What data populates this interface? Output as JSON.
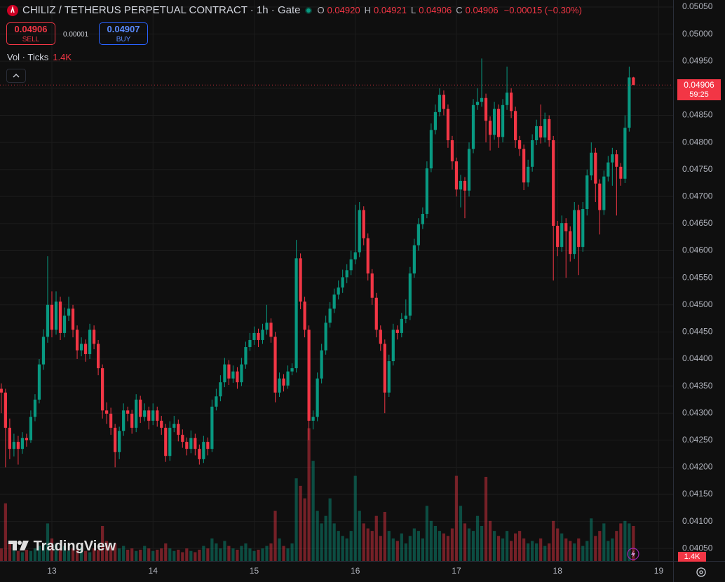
{
  "chart_data": {
    "type": "candlestick",
    "title": "CHILIZ / TETHERUS PERPETUAL CONTRACT · 1h · Gate",
    "ohlc": [
      {
        "key": "O",
        "value": "0.04920"
      },
      {
        "key": "H",
        "value": "0.04921"
      },
      {
        "key": "L",
        "value": "0.04906"
      },
      {
        "key": "C",
        "value": "0.04906"
      }
    ],
    "change": "−0.00015 (−0.30%)",
    "sell": {
      "price": "0.04906",
      "label": "SELL"
    },
    "spread": "0.00001",
    "buy": {
      "price": "0.04907",
      "label": "BUY"
    },
    "last_price_label": "0.04906",
    "countdown": "59:25",
    "watermark": "TradingView",
    "up_color": "#089981",
    "down_color": "#f23645",
    "grid": true,
    "xlim": [
      -0.31,
      159.42
    ],
    "xticks": [
      {
        "value": 12,
        "label": "13"
      },
      {
        "value": 36,
        "label": "14"
      },
      {
        "value": 60,
        "label": "15"
      },
      {
        "value": 84,
        "label": "16"
      },
      {
        "value": 108,
        "label": "17"
      },
      {
        "value": 132,
        "label": "18"
      },
      {
        "value": 156,
        "label": "19"
      }
    ],
    "ylim": [
      0.04027,
      0.05063
    ],
    "yticks": [
      {
        "value": 0.0405,
        "label": "0.04050"
      },
      {
        "value": 0.041,
        "label": "0.04100"
      },
      {
        "value": 0.0415,
        "label": "0.04150"
      },
      {
        "value": 0.042,
        "label": "0.04200"
      },
      {
        "value": 0.0425,
        "label": "0.04250"
      },
      {
        "value": 0.043,
        "label": "0.04300"
      },
      {
        "value": 0.0435,
        "label": "0.04350"
      },
      {
        "value": 0.044,
        "label": "0.04400"
      },
      {
        "value": 0.0445,
        "label": "0.04450"
      },
      {
        "value": 0.045,
        "label": "0.04500"
      },
      {
        "value": 0.0455,
        "label": "0.04550"
      },
      {
        "value": 0.046,
        "label": "0.04600"
      },
      {
        "value": 0.0465,
        "label": "0.04650"
      },
      {
        "value": 0.047,
        "label": "0.04700"
      },
      {
        "value": 0.0475,
        "label": "0.04750"
      },
      {
        "value": 0.048,
        "label": "0.04800"
      },
      {
        "value": 0.0485,
        "label": "0.04850"
      },
      {
        "value": 0.049,
        "label": "0.04900"
      },
      {
        "value": 0.0495,
        "label": "0.04950"
      },
      {
        "value": 0.05,
        "label": "0.05000"
      },
      {
        "value": 0.0505,
        "label": "0.05050"
      }
    ],
    "candles": [
      [
        0.04345,
        0.04355,
        0.043,
        0.04338
      ],
      [
        0.04338,
        0.04345,
        0.042,
        0.04273
      ],
      [
        0.04273,
        0.0429,
        0.04215,
        0.04234
      ],
      [
        0.04234,
        0.04262,
        0.0422,
        0.04247
      ],
      [
        0.04247,
        0.04258,
        0.04205,
        0.04234
      ],
      [
        0.04234,
        0.04265,
        0.04225,
        0.04254
      ],
      [
        0.04254,
        0.04262,
        0.04238,
        0.0425
      ],
      [
        0.0425,
        0.04305,
        0.04245,
        0.04293
      ],
      [
        0.04293,
        0.04335,
        0.04285,
        0.04325
      ],
      [
        0.04325,
        0.044,
        0.04318,
        0.0439
      ],
      [
        0.0439,
        0.04455,
        0.0438,
        0.04441
      ],
      [
        0.04441,
        0.0459,
        0.0443,
        0.045
      ],
      [
        0.045,
        0.04525,
        0.0444,
        0.04454
      ],
      [
        0.04454,
        0.04525,
        0.04445,
        0.04506
      ],
      [
        0.04506,
        0.04515,
        0.04435,
        0.04448
      ],
      [
        0.04448,
        0.04495,
        0.0444,
        0.0448
      ],
      [
        0.0448,
        0.04515,
        0.0447,
        0.04493
      ],
      [
        0.04493,
        0.045,
        0.0444,
        0.04454
      ],
      [
        0.04454,
        0.04462,
        0.044,
        0.04416
      ],
      [
        0.04416,
        0.0444,
        0.04405,
        0.04428
      ],
      [
        0.04428,
        0.04436,
        0.04395,
        0.04409
      ],
      [
        0.04409,
        0.04465,
        0.044,
        0.04454
      ],
      [
        0.04454,
        0.04462,
        0.04418,
        0.04428
      ],
      [
        0.04428,
        0.04435,
        0.0437,
        0.04383
      ],
      [
        0.04383,
        0.0439,
        0.0429,
        0.04305
      ],
      [
        0.04305,
        0.0432,
        0.0428,
        0.04299
      ],
      [
        0.04299,
        0.0431,
        0.0426,
        0.04273
      ],
      [
        0.04273,
        0.0428,
        0.042,
        0.04228
      ],
      [
        0.04228,
        0.04275,
        0.04215,
        0.04267
      ],
      [
        0.04267,
        0.04318,
        0.04258,
        0.04305
      ],
      [
        0.04305,
        0.04312,
        0.04285,
        0.04299
      ],
      [
        0.04299,
        0.04306,
        0.04262,
        0.04273
      ],
      [
        0.04273,
        0.04335,
        0.04265,
        0.04325
      ],
      [
        0.04325,
        0.04332,
        0.04282,
        0.04293
      ],
      [
        0.04293,
        0.04318,
        0.04285,
        0.04305
      ],
      [
        0.04305,
        0.04312,
        0.0427,
        0.04286
      ],
      [
        0.04286,
        0.04318,
        0.04278,
        0.04305
      ],
      [
        0.04305,
        0.04312,
        0.04275,
        0.04286
      ],
      [
        0.04286,
        0.04295,
        0.0426,
        0.04273
      ],
      [
        0.04273,
        0.0428,
        0.0421,
        0.04221
      ],
      [
        0.04221,
        0.04285,
        0.04212,
        0.04273
      ],
      [
        0.04273,
        0.04295,
        0.04265,
        0.0428
      ],
      [
        0.0428,
        0.04288,
        0.04248,
        0.0426
      ],
      [
        0.0426,
        0.0427,
        0.04236,
        0.04247
      ],
      [
        0.04247,
        0.04255,
        0.04222,
        0.04234
      ],
      [
        0.04234,
        0.04268,
        0.04226,
        0.04254
      ],
      [
        0.04254,
        0.04262,
        0.04222,
        0.04234
      ],
      [
        0.04234,
        0.04242,
        0.04205,
        0.04215
      ],
      [
        0.04215,
        0.04258,
        0.04208,
        0.04247
      ],
      [
        0.04247,
        0.04255,
        0.04222,
        0.04234
      ],
      [
        0.04234,
        0.04325,
        0.04228,
        0.04312
      ],
      [
        0.04312,
        0.04345,
        0.04305,
        0.04331
      ],
      [
        0.04331,
        0.0437,
        0.04322,
        0.04357
      ],
      [
        0.04357,
        0.04402,
        0.04348,
        0.0439
      ],
      [
        0.0439,
        0.04398,
        0.04352,
        0.04364
      ],
      [
        0.04364,
        0.04388,
        0.04356,
        0.04377
      ],
      [
        0.04377,
        0.04385,
        0.04345,
        0.04357
      ],
      [
        0.04357,
        0.04402,
        0.0435,
        0.0439
      ],
      [
        0.0439,
        0.04432,
        0.04382,
        0.04422
      ],
      [
        0.04422,
        0.04448,
        0.04415,
        0.04435
      ],
      [
        0.04435,
        0.0446,
        0.04426,
        0.04448
      ],
      [
        0.04448,
        0.04456,
        0.04422,
        0.04435
      ],
      [
        0.04435,
        0.04465,
        0.04428,
        0.04454
      ],
      [
        0.04454,
        0.045,
        0.04445,
        0.04467
      ],
      [
        0.04467,
        0.04475,
        0.0443,
        0.04441
      ],
      [
        0.04441,
        0.0445,
        0.0432,
        0.04338
      ],
      [
        0.04338,
        0.04375,
        0.0433,
        0.04364
      ],
      [
        0.04364,
        0.04372,
        0.0434,
        0.04351
      ],
      [
        0.04351,
        0.04388,
        0.04345,
        0.04377
      ],
      [
        0.04377,
        0.04392,
        0.0437,
        0.04383
      ],
      [
        0.04383,
        0.0462,
        0.04375,
        0.04586
      ],
      [
        0.04586,
        0.04595,
        0.04492,
        0.04506
      ],
      [
        0.04506,
        0.04515,
        0.0444,
        0.04454
      ],
      [
        0.04454,
        0.04462,
        0.0425,
        0.04286
      ],
      [
        0.04286,
        0.04305,
        0.0427,
        0.04293
      ],
      [
        0.04293,
        0.04375,
        0.04285,
        0.04364
      ],
      [
        0.04364,
        0.04428,
        0.04355,
        0.04416
      ],
      [
        0.04416,
        0.0448,
        0.04408,
        0.04467
      ],
      [
        0.04467,
        0.04505,
        0.04458,
        0.04493
      ],
      [
        0.04493,
        0.0453,
        0.04485,
        0.04519
      ],
      [
        0.04519,
        0.04545,
        0.0451,
        0.04532
      ],
      [
        0.04532,
        0.04565,
        0.04522,
        0.04551
      ],
      [
        0.04551,
        0.04575,
        0.0454,
        0.04564
      ],
      [
        0.04564,
        0.046,
        0.04555,
        0.04584
      ],
      [
        0.04584,
        0.04685,
        0.04575,
        0.04597
      ],
      [
        0.04597,
        0.0469,
        0.04588,
        0.04675
      ],
      [
        0.04675,
        0.04682,
        0.0461,
        0.04623
      ],
      [
        0.04623,
        0.04632,
        0.04545,
        0.04558
      ],
      [
        0.04558,
        0.04566,
        0.045,
        0.04513
      ],
      [
        0.04513,
        0.04522,
        0.0444,
        0.04454
      ],
      [
        0.04454,
        0.04462,
        0.04415,
        0.04428
      ],
      [
        0.04428,
        0.04436,
        0.043,
        0.04338
      ],
      [
        0.04338,
        0.04408,
        0.0433,
        0.04396
      ],
      [
        0.04396,
        0.04465,
        0.04388,
        0.04454
      ],
      [
        0.04454,
        0.04462,
        0.04436,
        0.04448
      ],
      [
        0.04448,
        0.04485,
        0.0444,
        0.04474
      ],
      [
        0.04474,
        0.0451,
        0.04466,
        0.0448
      ],
      [
        0.0448,
        0.0457,
        0.04472,
        0.04558
      ],
      [
        0.04558,
        0.04622,
        0.0455,
        0.0461
      ],
      [
        0.0461,
        0.0466,
        0.046,
        0.04649
      ],
      [
        0.04649,
        0.0468,
        0.0464,
        0.04668
      ],
      [
        0.04668,
        0.04765,
        0.0466,
        0.04752
      ],
      [
        0.04752,
        0.04835,
        0.04745,
        0.04823
      ],
      [
        0.04823,
        0.0487,
        0.04815,
        0.04856
      ],
      [
        0.04856,
        0.049,
        0.04848,
        0.04888
      ],
      [
        0.04888,
        0.04896,
        0.0485,
        0.04862
      ],
      [
        0.04862,
        0.0487,
        0.0479,
        0.04804
      ],
      [
        0.04804,
        0.04812,
        0.0475,
        0.04765
      ],
      [
        0.04765,
        0.04772,
        0.047,
        0.04713
      ],
      [
        0.04713,
        0.0474,
        0.0468,
        0.04729
      ],
      [
        0.04729,
        0.04736,
        0.0466,
        0.04711
      ],
      [
        0.04711,
        0.048,
        0.047,
        0.04788
      ],
      [
        0.04788,
        0.0488,
        0.0478,
        0.04869
      ],
      [
        0.04869,
        0.049,
        0.0486,
        0.04875
      ],
      [
        0.04875,
        0.04955,
        0.04866,
        0.04882
      ],
      [
        0.04882,
        0.0489,
        0.048,
        0.0484
      ],
      [
        0.0484,
        0.04848,
        0.04785,
        0.04814
      ],
      [
        0.04814,
        0.04875,
        0.04805,
        0.04862
      ],
      [
        0.04862,
        0.0487,
        0.0479,
        0.0481
      ],
      [
        0.0481,
        0.0488,
        0.048,
        0.04869
      ],
      [
        0.04869,
        0.0494,
        0.0486,
        0.04892
      ],
      [
        0.04892,
        0.049,
        0.04845,
        0.04858
      ],
      [
        0.04858,
        0.04866,
        0.0479,
        0.04804
      ],
      [
        0.04804,
        0.04812,
        0.04775,
        0.04788
      ],
      [
        0.04788,
        0.04796,
        0.04712,
        0.04726
      ],
      [
        0.04726,
        0.04768,
        0.04718,
        0.04755
      ],
      [
        0.04755,
        0.04815,
        0.04746,
        0.04804
      ],
      [
        0.04804,
        0.04842,
        0.04795,
        0.0483
      ],
      [
        0.0483,
        0.0487,
        0.04798,
        0.04809
      ],
      [
        0.04809,
        0.04855,
        0.048,
        0.04843
      ],
      [
        0.04843,
        0.0485,
        0.04792,
        0.04804
      ],
      [
        0.04804,
        0.04812,
        0.04545,
        0.04646
      ],
      [
        0.04646,
        0.04655,
        0.0459,
        0.04607
      ],
      [
        0.04607,
        0.04665,
        0.04598,
        0.04651
      ],
      [
        0.04651,
        0.0466,
        0.0455,
        0.04636
      ],
      [
        0.04636,
        0.04645,
        0.0458,
        0.04594
      ],
      [
        0.04594,
        0.0469,
        0.04585,
        0.04675
      ],
      [
        0.04675,
        0.04685,
        0.04555,
        0.04607
      ],
      [
        0.04607,
        0.0469,
        0.04598,
        0.04677
      ],
      [
        0.04677,
        0.0475,
        0.04665,
        0.04739
      ],
      [
        0.04739,
        0.048,
        0.0473,
        0.04781
      ],
      [
        0.04781,
        0.0479,
        0.0469,
        0.04724
      ],
      [
        0.04724,
        0.04732,
        0.0463,
        0.04675
      ],
      [
        0.04675,
        0.04748,
        0.04666,
        0.04737
      ],
      [
        0.04737,
        0.04775,
        0.04728,
        0.04763
      ],
      [
        0.04763,
        0.0479,
        0.0472,
        0.04778
      ],
      [
        0.04778,
        0.04786,
        0.04665,
        0.04755
      ],
      [
        0.04755,
        0.04762,
        0.0472,
        0.04733
      ],
      [
        0.04733,
        0.0485,
        0.04725,
        0.04827
      ],
      [
        0.04827,
        0.0494,
        0.0482,
        0.0492
      ],
      [
        0.0492,
        0.04921,
        0.04906,
        0.04906
      ]
    ],
    "volume": {
      "name": "Vol · Ticks",
      "last_label": "1.4K",
      "vlim": [
        0,
        7000
      ],
      "values": [
        500,
        2300,
        700,
        600,
        400,
        350,
        450,
        400,
        500,
        600,
        700,
        1500,
        900,
        700,
        500,
        600,
        400,
        500,
        450,
        550,
        400,
        350,
        500,
        450,
        1400,
        800,
        600,
        700,
        500,
        600,
        450,
        500,
        400,
        450,
        600,
        500,
        400,
        450,
        500,
        700,
        500,
        400,
        450,
        350,
        500,
        400,
        350,
        450,
        600,
        500,
        900,
        700,
        500,
        800,
        600,
        500,
        450,
        600,
        700,
        500,
        400,
        450,
        500,
        600,
        700,
        2000,
        900,
        600,
        500,
        700,
        3300,
        3000,
        2500,
        5300,
        4000,
        2000,
        1500,
        1800,
        2500,
        1500,
        1200,
        1000,
        900,
        1200,
        3400,
        2000,
        1500,
        1300,
        1200,
        1800,
        1000,
        1960,
        1200,
        900,
        800,
        1100,
        700,
        1000,
        1300,
        1200,
        900,
        2200,
        1600,
        1400,
        1200,
        1100,
        1000,
        1300,
        3400,
        2200,
        1500,
        1300,
        1200,
        1800,
        1400,
        3360,
        1600,
        1200,
        1000,
        900,
        1200,
        800,
        1100,
        1200,
        900,
        700,
        800,
        700,
        900,
        600,
        700,
        1600,
        1300,
        1100,
        900,
        800,
        700,
        900,
        600,
        800,
        1700,
        1000,
        1200,
        1500,
        800,
        900,
        1200,
        1500,
        1600,
        1500,
        1400
      ]
    }
  }
}
